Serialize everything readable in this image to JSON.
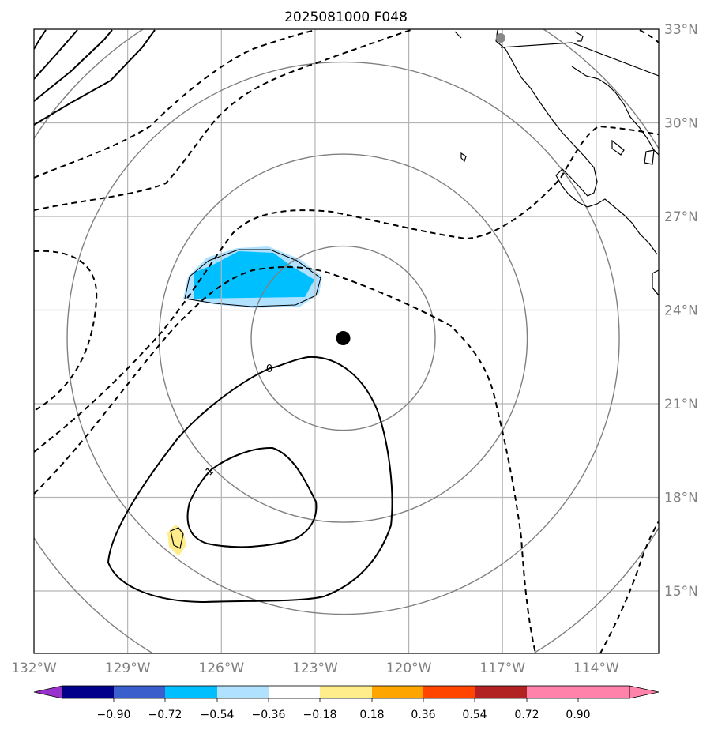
{
  "chart_data": {
    "type": "contour",
    "title": "2025081000 F048",
    "map": {
      "lon_range": [
        -132,
        -112
      ],
      "lat_range": [
        13,
        33
      ],
      "meridians": [
        -132,
        -129,
        -126,
        -123,
        -120,
        -117,
        -114
      ],
      "parallels": [
        15,
        18,
        21,
        24,
        27,
        30,
        33
      ],
      "lon_labels": [
        "132°W",
        "129°W",
        "126°W",
        "123°W",
        "120°W",
        "117°W",
        "114°W"
      ],
      "lat_labels": [
        "15°N",
        "18°N",
        "21°N",
        "24°N",
        "27°N",
        "30°N",
        "33°N"
      ],
      "gridlines": true,
      "coastlines": true
    },
    "center_marker": {
      "lon": -122.1,
      "lat": 23.1
    },
    "range_rings": {
      "center_lon": -122.1,
      "center_lat": 23.1,
      "count": 4
    },
    "contour_labels": [
      "0",
      "1"
    ],
    "colorbar": {
      "ticks": [
        "−0.90",
        "−0.72",
        "−0.54",
        "−0.36",
        "−0.18",
        "0.18",
        "0.36",
        "0.54",
        "0.72",
        "0.90"
      ],
      "colors": [
        "#9932cc",
        "#00008b",
        "#3a5fcd",
        "#00bfff",
        "#b0e2ff",
        "#ffffff",
        "#ffec8b",
        "#ffa500",
        "#ff4500",
        "#b22222",
        "#ff82ab"
      ],
      "extend": "both",
      "orientation": "horizontal"
    },
    "shaded_regions": [
      {
        "value_range": [
          -0.54,
          -0.36
        ],
        "color": "#00bfff",
        "lon_range": [
          -126.3,
          -123.9
        ],
        "lat_range": [
          24.5,
          26.0
        ]
      },
      {
        "value_range": [
          0.18,
          0.36
        ],
        "color": "#ffec8b",
        "lon_range": [
          -127.8,
          -127.3
        ],
        "lat_range": [
          16.3,
          17.3
        ]
      }
    ]
  }
}
